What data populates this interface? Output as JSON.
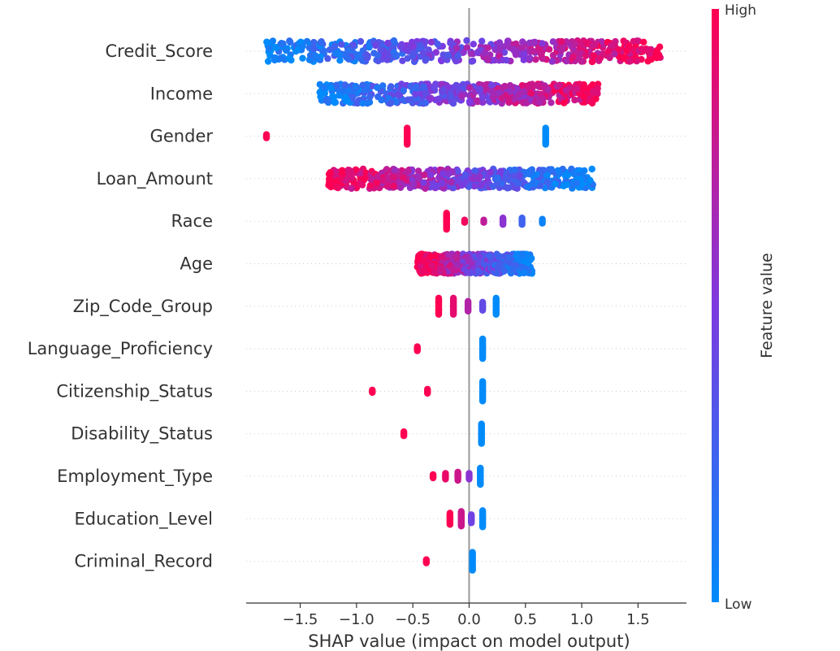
{
  "chart_data": {
    "type": "scatter",
    "subtype": "shap-beeswarm",
    "xlabel": "SHAP value (impact on model output)",
    "xlim": [
      -1.98,
      1.93
    ],
    "xticks": [
      -1.5,
      -1.0,
      -0.5,
      0.0,
      0.5,
      1.0,
      1.5
    ],
    "xtick_labels": [
      "−1.5",
      "−1.0",
      "−0.5",
      "0.0",
      "0.5",
      "1.0",
      "1.5"
    ],
    "colorbar": {
      "title": "Feature value",
      "high_label": "High",
      "low_label": "Low",
      "low_color": "#008bfb",
      "high_color": "#ff0052"
    },
    "dotted_gridlines": true,
    "zero_line": true,
    "features": [
      {
        "name": "Credit_Score",
        "kind": "continuous",
        "min": -1.8,
        "max": 1.7,
        "high_side": "right",
        "spread": 26
      },
      {
        "name": "Income",
        "kind": "continuous",
        "min": -1.33,
        "max": 1.15,
        "high_side": "right",
        "spread": 24
      },
      {
        "name": "Gender",
        "kind": "discrete",
        "points": [
          {
            "x": -1.8,
            "value": 1.0,
            "spread": 4
          },
          {
            "x": -0.55,
            "value": 1.0,
            "spread": 20
          },
          {
            "x": 0.68,
            "value": 0.0,
            "spread": 20
          }
        ]
      },
      {
        "name": "Loan_Amount",
        "kind": "continuous",
        "min": -1.25,
        "max": 1.1,
        "high_side": "left",
        "spread": 24
      },
      {
        "name": "Race",
        "kind": "discrete",
        "points": [
          {
            "x": -0.2,
            "value": 1.0,
            "spread": 20
          },
          {
            "x": -0.04,
            "value": 0.95,
            "spread": 3
          },
          {
            "x": 0.13,
            "value": 0.75,
            "spread": 3
          },
          {
            "x": 0.3,
            "value": 0.55,
            "spread": 8
          },
          {
            "x": 0.47,
            "value": 0.25,
            "spread": 8
          },
          {
            "x": 0.65,
            "value": 0.05,
            "spread": 5
          }
        ]
      },
      {
        "name": "Age",
        "kind": "continuous",
        "min": -0.46,
        "max": 0.56,
        "high_side": "left",
        "spread": 24
      },
      {
        "name": "Zip_Code_Group",
        "kind": "discrete",
        "points": [
          {
            "x": -0.27,
            "value": 1.0,
            "spread": 20
          },
          {
            "x": -0.14,
            "value": 0.9,
            "spread": 20
          },
          {
            "x": -0.01,
            "value": 0.7,
            "spread": 12
          },
          {
            "x": 0.12,
            "value": 0.4,
            "spread": 10
          },
          {
            "x": 0.24,
            "value": 0.0,
            "spread": 20
          }
        ]
      },
      {
        "name": "Language_Proficiency",
        "kind": "discrete",
        "points": [
          {
            "x": -0.46,
            "value": 1.0,
            "spread": 5
          },
          {
            "x": 0.12,
            "value": 0.0,
            "spread": 24
          }
        ]
      },
      {
        "name": "Citizenship_Status",
        "kind": "discrete",
        "points": [
          {
            "x": -0.86,
            "value": 1.0,
            "spread": 3
          },
          {
            "x": -0.37,
            "value": 1.0,
            "spread": 5
          },
          {
            "x": 0.12,
            "value": 0.0,
            "spread": 24
          }
        ]
      },
      {
        "name": "Disability_Status",
        "kind": "discrete",
        "points": [
          {
            "x": -0.58,
            "value": 1.0,
            "spread": 5
          },
          {
            "x": 0.11,
            "value": 0.0,
            "spread": 24
          }
        ]
      },
      {
        "name": "Employment_Type",
        "kind": "discrete",
        "points": [
          {
            "x": -0.32,
            "value": 1.0,
            "spread": 4
          },
          {
            "x": -0.21,
            "value": 0.92,
            "spread": 7
          },
          {
            "x": -0.1,
            "value": 0.8,
            "spread": 10
          },
          {
            "x": 0.0,
            "value": 0.55,
            "spread": 7
          },
          {
            "x": 0.1,
            "value": 0.0,
            "spread": 20
          }
        ]
      },
      {
        "name": "Education_Level",
        "kind": "discrete",
        "points": [
          {
            "x": -0.17,
            "value": 1.0,
            "spread": 14
          },
          {
            "x": -0.07,
            "value": 0.8,
            "spread": 18
          },
          {
            "x": 0.02,
            "value": 0.45,
            "spread": 10
          },
          {
            "x": 0.12,
            "value": 0.0,
            "spread": 20
          }
        ]
      },
      {
        "name": "Criminal_Record",
        "kind": "discrete",
        "points": [
          {
            "x": -0.38,
            "value": 1.0,
            "spread": 4
          },
          {
            "x": 0.03,
            "value": 0.0,
            "spread": 22
          }
        ]
      }
    ]
  }
}
